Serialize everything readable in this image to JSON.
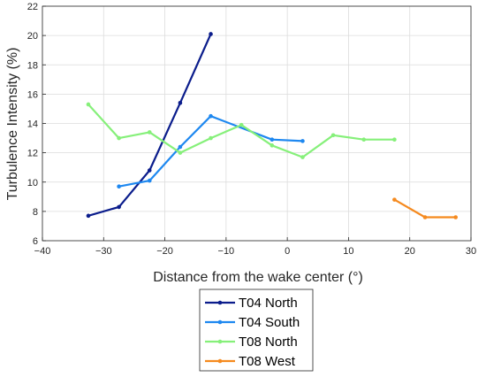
{
  "chart_data": {
    "type": "line",
    "xlabel": "Distance from the wake center (°)",
    "ylabel": "Turbulence Intensity (%)",
    "xlim": [
      -40,
      30
    ],
    "ylim": [
      6,
      22
    ],
    "xticks": [
      -40,
      -30,
      -20,
      -10,
      0,
      10,
      20,
      30
    ],
    "yticks": [
      6,
      8,
      10,
      12,
      14,
      16,
      18,
      20,
      22
    ],
    "grid": true,
    "legend_position": "below",
    "series": [
      {
        "name": "T04 North",
        "color": "#0b1d8c",
        "x": [
          -32.5,
          -27.5,
          -22.5,
          -17.5,
          -12.5
        ],
        "y": [
          7.7,
          8.3,
          10.8,
          15.4,
          20.1
        ]
      },
      {
        "name": "T04 South",
        "color": "#1e88f0",
        "x": [
          -27.5,
          -22.5,
          -17.5,
          -12.5,
          -2.5,
          2.5
        ],
        "y": [
          9.7,
          10.1,
          12.4,
          14.5,
          12.9,
          12.8
        ]
      },
      {
        "name": "T08 North",
        "color": "#86f07a",
        "x": [
          -32.5,
          -27.5,
          -22.5,
          -17.5,
          -12.5,
          -7.5,
          -2.5,
          2.5,
          7.5,
          12.5,
          17.5
        ],
        "y": [
          15.3,
          13.0,
          13.4,
          12.0,
          13.0,
          13.9,
          12.5,
          11.7,
          13.2,
          12.9,
          12.9
        ]
      },
      {
        "name": "T08 West",
        "color": "#f58a1f",
        "x": [
          17.5,
          22.5,
          27.5
        ],
        "y": [
          8.8,
          7.6,
          7.6
        ]
      }
    ]
  }
}
